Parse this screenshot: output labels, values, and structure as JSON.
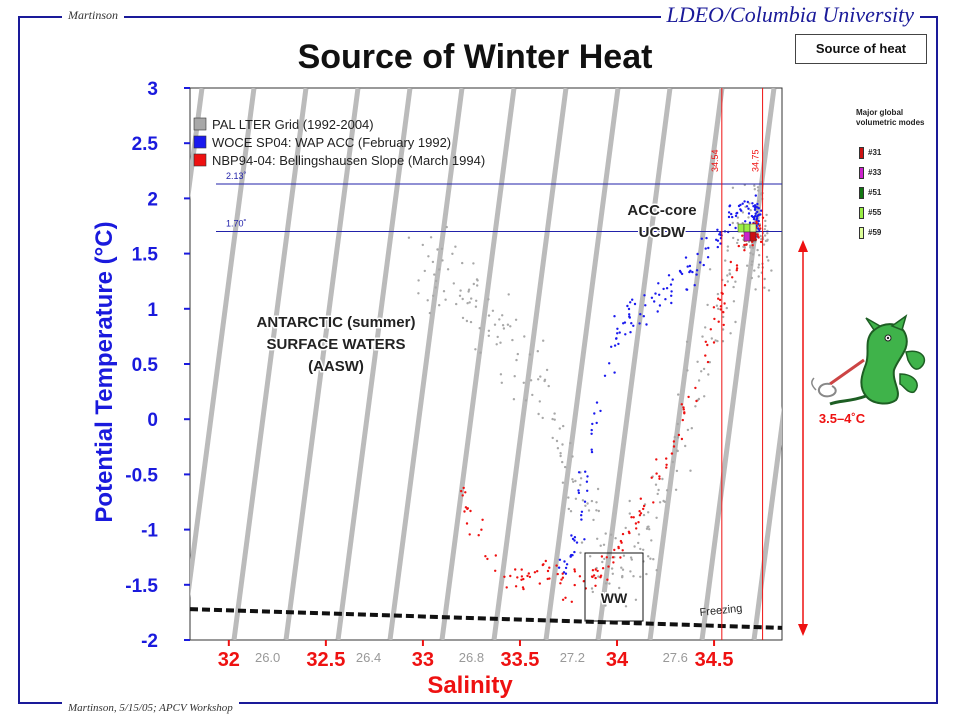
{
  "header": {
    "left_text": "Martinson",
    "right_text": "LDEO/Columbia University"
  },
  "footer": {
    "text": "Martinson, 5/15/05; APCV Workshop"
  },
  "title": "Source of Winter Heat",
  "badge": "Source of heat",
  "modes": {
    "title": "Major global volumetric modes",
    "items": [
      {
        "label": "#31",
        "color": "#cc1111"
      },
      {
        "label": "#33",
        "color": "#cc22cc"
      },
      {
        "label": "#51",
        "color": "#117711"
      },
      {
        "label": "#55",
        "color": "#99ee44"
      },
      {
        "label": "#59",
        "color": "#ddff99"
      }
    ]
  },
  "annotations": {
    "aasw_1": "ANTARCTIC (summer)",
    "aasw_2": "SURFACE WATERS",
    "aasw_3": "(AASW)",
    "acc_1": "ACC-core",
    "acc_2": "UCDW",
    "ww": "WW",
    "freezing": "Freezing",
    "range": "3.5–4˚C",
    "t1": "2.13˚",
    "t2": "1.70˚",
    "s1": "34.54",
    "s2": "34.75"
  },
  "chart_data": {
    "type": "scatter",
    "title": "Source of Winter Heat",
    "xlabel": "Salinity",
    "ylabel": "Potential Temperature (°C)",
    "xlim": [
      31.8,
      34.85
    ],
    "ylim": [
      -2,
      3
    ],
    "x_ticks": [
      "32",
      "32.5",
      "33",
      "33.5",
      "34",
      "34.5"
    ],
    "y_ticks": [
      "3",
      "2.5",
      "2",
      "1.5",
      "1",
      "0.5",
      "0",
      "-0.5",
      "-1",
      "-1.5",
      "-2"
    ],
    "density_labels": [
      {
        "label": "26.0",
        "s": 32.2
      },
      {
        "label": "26.4",
        "s": 32.72
      },
      {
        "label": "26.8",
        "s": 33.25
      },
      {
        "label": "27.2",
        "s": 33.77
      },
      {
        "label": "27.6",
        "s": 34.3
      }
    ],
    "isotherms": [
      2.13,
      1.7
    ],
    "isohalines": [
      34.54,
      34.75
    ],
    "series": [
      {
        "name": "PAL LTER Grid (1992-2004)",
        "color": "#a8a8a8",
        "x": [
          33.0,
          33.2,
          33.4,
          33.6,
          33.8,
          33.95,
          34.1,
          34.3,
          34.5,
          34.65,
          34.72,
          34.73
        ],
        "y": [
          1.4,
          1.2,
          0.9,
          0.3,
          -0.6,
          -1.4,
          -1.2,
          -0.4,
          0.8,
          1.7,
          1.9,
          1.5
        ]
      },
      {
        "name": "WOCE SP04: WAP ACC (February 1992)",
        "color": "#1a1aee",
        "x": [
          33.7,
          33.8,
          33.9,
          34.05,
          34.2,
          34.35,
          34.5,
          34.6,
          34.7,
          34.72
        ],
        "y": [
          -1.5,
          -1.0,
          0.2,
          0.9,
          1.1,
          1.3,
          1.6,
          1.85,
          1.9,
          1.8
        ]
      },
      {
        "name": "NBP94-04:  Bellingshausen Slope (March 1994)",
        "color": "#ee1111",
        "x": [
          33.2,
          33.4,
          33.6,
          33.8,
          33.95,
          34.1,
          34.3,
          34.5,
          34.65,
          34.72
        ],
        "y": [
          -0.6,
          -1.5,
          -1.4,
          -1.5,
          -1.3,
          -0.9,
          -0.2,
          0.8,
          1.6,
          1.7
        ]
      }
    ],
    "freezing_line": {
      "x": [
        31.8,
        34.85
      ],
      "y": [
        -1.72,
        -1.89
      ]
    },
    "grid": false,
    "legend": "top-left"
  }
}
